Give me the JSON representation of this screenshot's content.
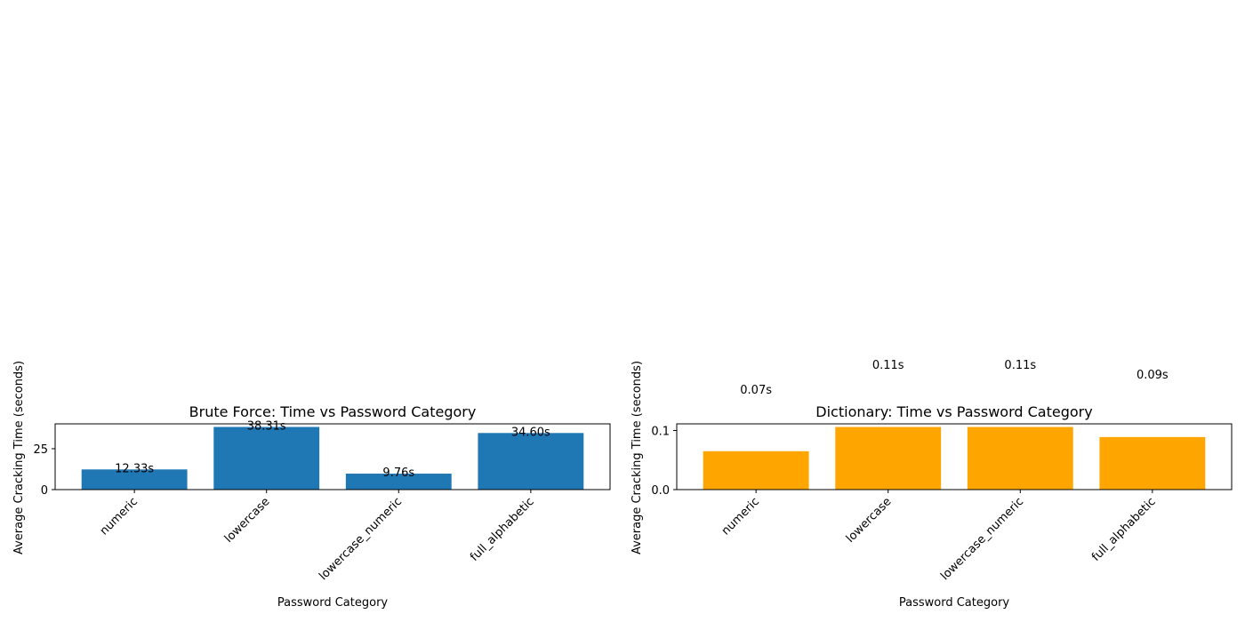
{
  "chart_data": [
    {
      "type": "bar",
      "title": "Brute Force: Time vs Password Category",
      "xlabel": "Password Category",
      "ylabel": "Average Cracking Time (seconds)",
      "categories": [
        "numeric",
        "lowercase",
        "lowercase_numeric",
        "full_alphabetic"
      ],
      "values": [
        12.33,
        38.31,
        9.76,
        34.6
      ],
      "data_labels": [
        "12.33s",
        "38.31s",
        "9.76s",
        "34.60s"
      ],
      "yticks": [
        0,
        25
      ],
      "ytick_labels": [
        "0",
        "25"
      ],
      "ylim": [
        0,
        40.2
      ],
      "bar_color": "#1f77b4",
      "grid": false
    },
    {
      "type": "bar",
      "title": "Dictionary: Time vs Password Category",
      "xlabel": "Password Category",
      "ylabel": "Average Cracking Time (seconds)",
      "categories": [
        "numeric",
        "lowercase",
        "lowercase_numeric",
        "full_alphabetic"
      ],
      "values": [
        0.065,
        0.106,
        0.106,
        0.089
      ],
      "data_labels": [
        "0.07s",
        "0.11s",
        "0.11s",
        "0.09s"
      ],
      "yticks": [
        0.0,
        0.1
      ],
      "ytick_labels": [
        "0.0",
        "0.1"
      ],
      "ylim": [
        0,
        0.1113
      ],
      "bar_color": "#ffa500",
      "grid": false
    }
  ]
}
